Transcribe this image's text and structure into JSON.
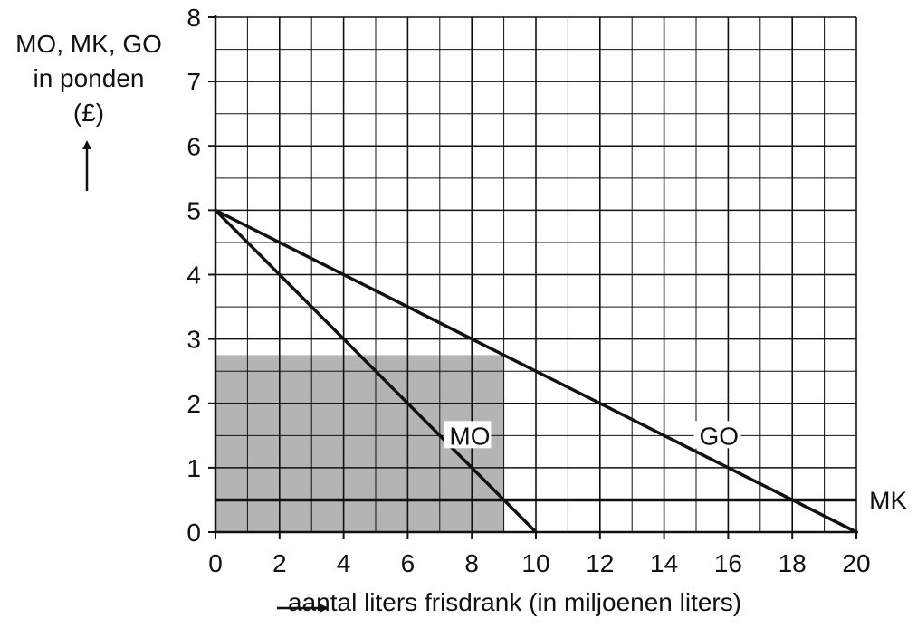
{
  "chart_data": {
    "type": "line",
    "ylabel_lines": [
      "MO, MK, GO",
      "in ponden",
      "(£)"
    ],
    "xlabel": "aantal liters frisdrank (in miljoenen liters)",
    "xlim": [
      0,
      20
    ],
    "ylim": [
      0,
      8
    ],
    "x_ticks": [
      "0",
      "2",
      "4",
      "6",
      "8",
      "10",
      "12",
      "14",
      "16",
      "18",
      "20"
    ],
    "y_ticks": [
      "0",
      "1",
      "2",
      "3",
      "4",
      "5",
      "6",
      "7",
      "8"
    ],
    "grid": true,
    "series": [
      {
        "name": "MO",
        "x": [
          0,
          10
        ],
        "y": [
          5,
          0
        ]
      },
      {
        "name": "GO",
        "x": [
          0,
          20
        ],
        "y": [
          5,
          0
        ]
      },
      {
        "name": "MK",
        "x": [
          0,
          20
        ],
        "y": [
          0.5,
          0.5
        ]
      }
    ],
    "shaded_region": {
      "x": [
        0,
        9
      ],
      "y": [
        0,
        2.75
      ],
      "color": "#b4b4b4"
    },
    "colors": {
      "line": "#111111",
      "grid": "#111111",
      "shade": "#b4b4b4"
    }
  }
}
